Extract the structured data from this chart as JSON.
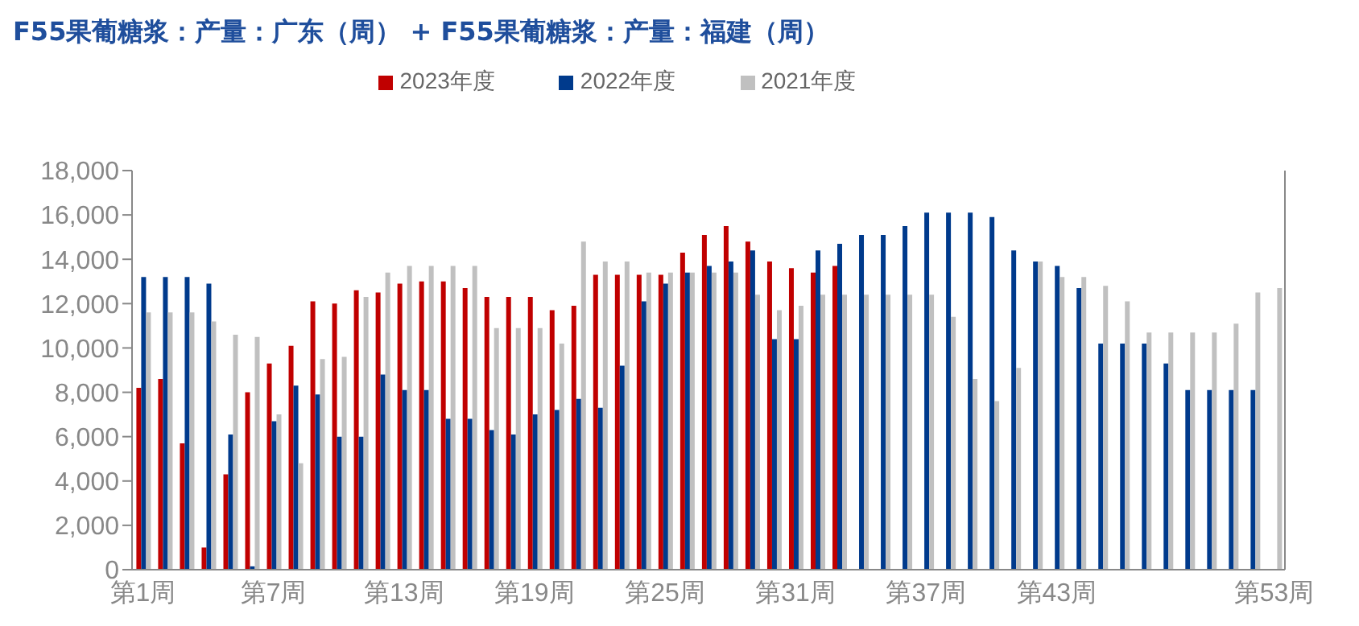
{
  "chart_data": {
    "type": "bar",
    "title": "F55果葡糖浆：产量：广东（周） + F55果葡糖浆：产量：福建（周）",
    "categories": [
      "第1周",
      null,
      null,
      null,
      null,
      null,
      "第7周",
      null,
      null,
      null,
      null,
      null,
      "第13周",
      null,
      null,
      null,
      null,
      null,
      "第19周",
      null,
      null,
      null,
      null,
      null,
      "第25周",
      null,
      null,
      null,
      null,
      null,
      "第31周",
      null,
      null,
      null,
      null,
      null,
      "第37周",
      null,
      null,
      null,
      null,
      null,
      "第43周",
      null,
      null,
      null,
      null,
      null,
      null,
      null,
      null,
      null,
      "第53周"
    ],
    "series": [
      {
        "name": "2023年度",
        "color": "#c00000",
        "values": [
          8200,
          8600,
          5700,
          1000,
          4300,
          8000,
          9300,
          10100,
          12100,
          12000,
          12600,
          12500,
          12900,
          13000,
          13000,
          12700,
          12300,
          12300,
          12300,
          11700,
          11900,
          13300,
          13300,
          13300,
          13300,
          14300,
          15100,
          15500,
          14800,
          13900,
          13600,
          13400,
          13700,
          null,
          null,
          null,
          null,
          null,
          null,
          null,
          null,
          null,
          null,
          null,
          null,
          null,
          null,
          null,
          null,
          null,
          null,
          null,
          null
        ]
      },
      {
        "name": "2022年度",
        "color": "#003a8c",
        "values": [
          13200,
          13200,
          13200,
          12900,
          6100,
          150,
          6700,
          8300,
          7900,
          6000,
          6000,
          8800,
          8100,
          8100,
          6800,
          6800,
          6300,
          6100,
          7000,
          7200,
          7700,
          7300,
          9200,
          12100,
          12900,
          13400,
          13700,
          13900,
          14400,
          10400,
          10400,
          14400,
          14700,
          15100,
          15100,
          15500,
          16100,
          16100,
          16100,
          15900,
          14400,
          13900,
          13700,
          12700,
          10200,
          10200,
          10200,
          9300,
          8100,
          8100,
          8100,
          8100,
          null
        ]
      },
      {
        "name": "2021年度",
        "color": "#c0c0c0",
        "values": [
          11600,
          11600,
          11600,
          11200,
          10600,
          10500,
          7000,
          4800,
          9500,
          9600,
          12300,
          13400,
          13700,
          13700,
          13700,
          13700,
          10900,
          10900,
          10900,
          10200,
          14800,
          13900,
          13900,
          13400,
          13400,
          13400,
          13400,
          13400,
          12400,
          11700,
          11900,
          12400,
          12400,
          12400,
          12400,
          12400,
          12400,
          11400,
          8600,
          7600,
          9100,
          13900,
          13200,
          13200,
          12800,
          12100,
          10700,
          10700,
          10700,
          10700,
          11100,
          12500,
          12700
        ]
      }
    ],
    "ylim": [
      0,
      18000
    ],
    "yticks": [
      0,
      {
        "value": 2000,
        "label": "2,000"
      },
      {
        "value": 4000,
        "label": "4,000"
      },
      {
        "value": 6000,
        "label": "6,000"
      },
      {
        "value": 8000,
        "label": "8,000"
      },
      {
        "value": 10000,
        "label": "10,000"
      },
      {
        "value": 12000,
        "label": "12,000"
      },
      {
        "value": 14000,
        "label": "14,000"
      },
      {
        "value": 16000,
        "label": "16,000"
      },
      {
        "value": 18000,
        "label": "18,000"
      }
    ],
    "legend": "top"
  }
}
